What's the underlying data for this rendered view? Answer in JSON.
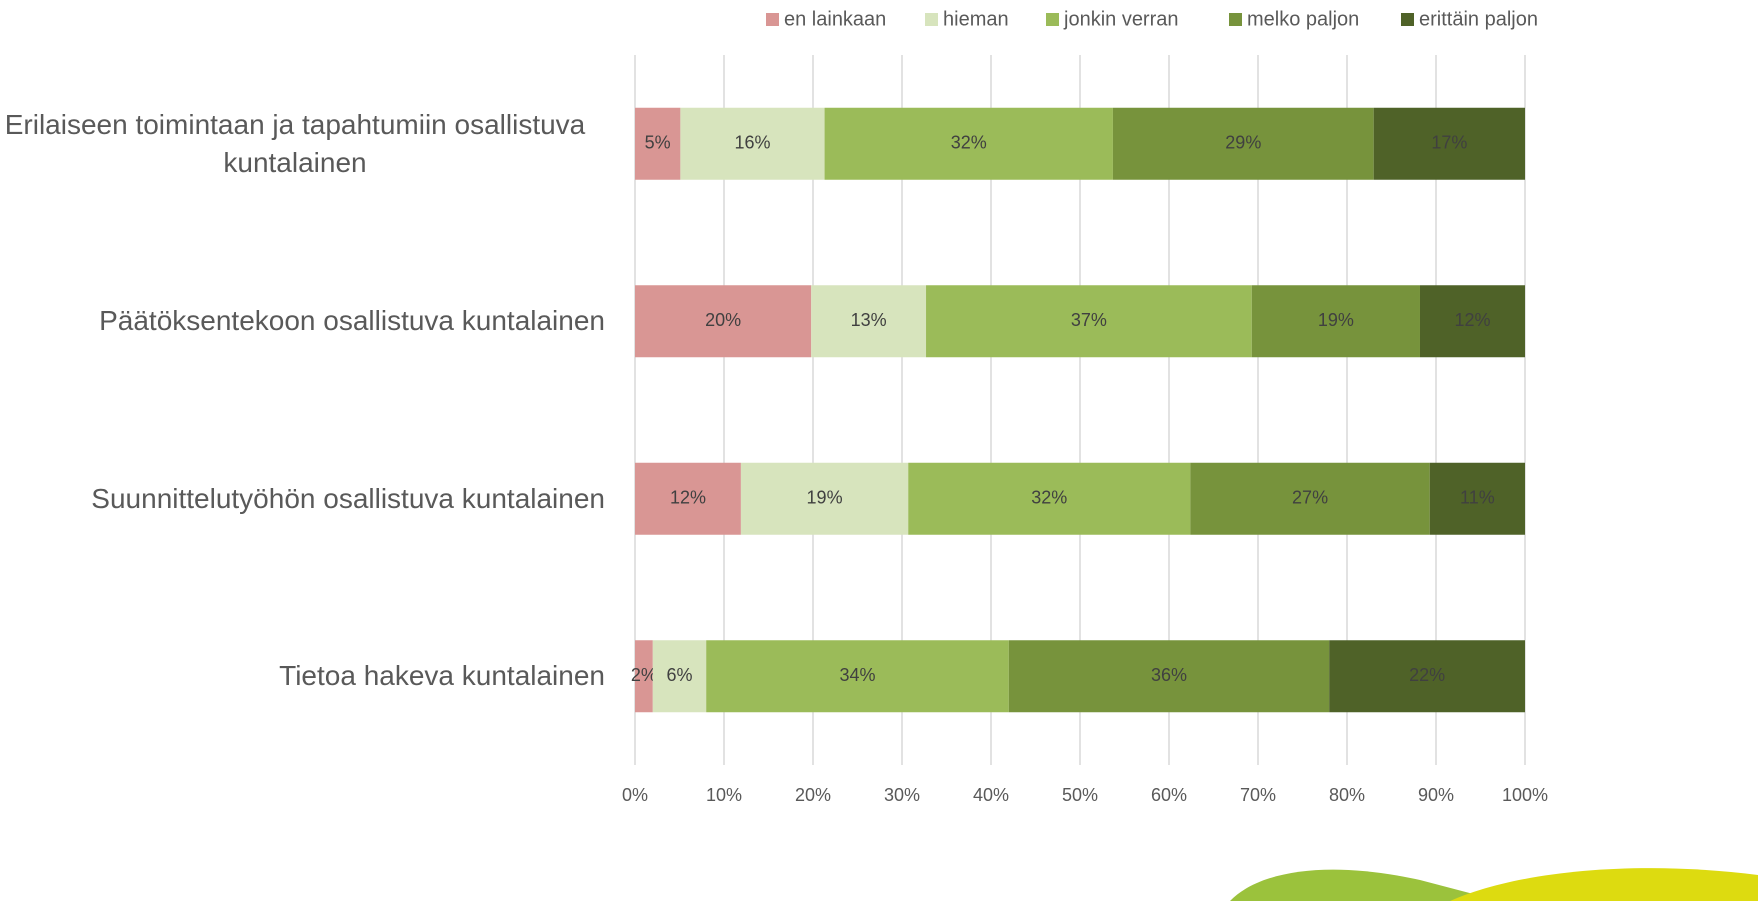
{
  "chart_data": {
    "type": "stacked_bar_horizontal",
    "categories": [
      "Erilaiseen toimintaan ja tapahtumiin osallistuva kuntalainen",
      "Päätöksentekoon osallistuva kuntalainen",
      "Suunnittelutyöhön osallistuva kuntalainen",
      "Tietoa hakeva kuntalainen"
    ],
    "series": [
      {
        "name": "en lainkaan",
        "color": "#d99694",
        "values": [
          5.1,
          19.8,
          11.9,
          2.0
        ],
        "value_labels": [
          "5%",
          "20%",
          "12%",
          "2%"
        ]
      },
      {
        "name": "hieman",
        "color": "#d7e4bd",
        "values": [
          16.2,
          12.9,
          18.8,
          6.0
        ],
        "value_labels": [
          "16%",
          "13%",
          "19%",
          "6%"
        ]
      },
      {
        "name": "jonkin verran",
        "color": "#9bbb59",
        "values": [
          32.4,
          36.6,
          31.7,
          34.0
        ],
        "value_labels": [
          "32%",
          "37%",
          "32%",
          "34%"
        ]
      },
      {
        "name": "melko paljon",
        "color": "#77933c",
        "values": [
          29.3,
          18.9,
          26.9,
          36.0
        ],
        "value_labels": [
          "29%",
          "19%",
          "27%",
          "36%"
        ]
      },
      {
        "name": "erittäin paljon",
        "color": "#4f6228",
        "values": [
          17.0,
          11.8,
          10.7,
          22.0
        ],
        "value_labels": [
          "17%",
          "12%",
          "11%",
          "22%"
        ]
      }
    ],
    "xlim": [
      0,
      100
    ],
    "xticks": [
      {
        "value": 0,
        "label": "0%"
      },
      {
        "value": 10,
        "label": "10%"
      },
      {
        "value": 20,
        "label": "20%"
      },
      {
        "value": 30,
        "label": "30%"
      },
      {
        "value": 40,
        "label": "40%"
      },
      {
        "value": 50,
        "label": "50%"
      },
      {
        "value": 60,
        "label": "60%"
      },
      {
        "value": 70,
        "label": "70%"
      },
      {
        "value": 80,
        "label": "80%"
      },
      {
        "value": 90,
        "label": "90%"
      },
      {
        "value": 100,
        "label": "100%"
      }
    ],
    "grid": true,
    "legend": "top"
  }
}
